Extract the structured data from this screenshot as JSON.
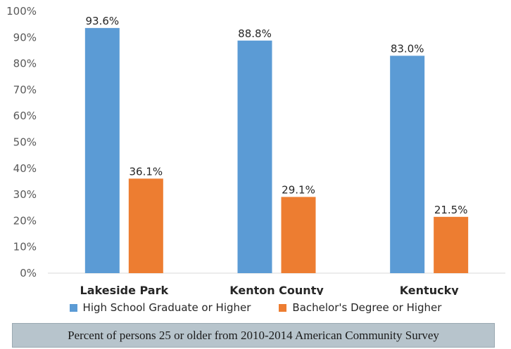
{
  "chart_data": {
    "type": "bar",
    "categories": [
      "Lakeside Park",
      "Kenton County",
      "Kentucky"
    ],
    "series": [
      {
        "name": "High School Graduate or Higher",
        "values": [
          93.6,
          88.8,
          83.0
        ],
        "labels": [
          "93.6%",
          "88.8%",
          "83.0%"
        ],
        "color": "#5b9bd5"
      },
      {
        "name": "Bachelor's Degree or Higher",
        "values": [
          36.1,
          29.1,
          21.5
        ],
        "labels": [
          "36.1%",
          "29.1%",
          "21.5%"
        ],
        "color": "#ed7d31"
      }
    ],
    "ylim": [
      0,
      100
    ],
    "yticks": [
      "0%",
      "10%",
      "20%",
      "30%",
      "40%",
      "50%",
      "60%",
      "70%",
      "80%",
      "90%",
      "100%"
    ],
    "grid": false,
    "legend": "bottom"
  },
  "caption": "Percent of persons 25 or older from 2010-2014 American Community Survey"
}
